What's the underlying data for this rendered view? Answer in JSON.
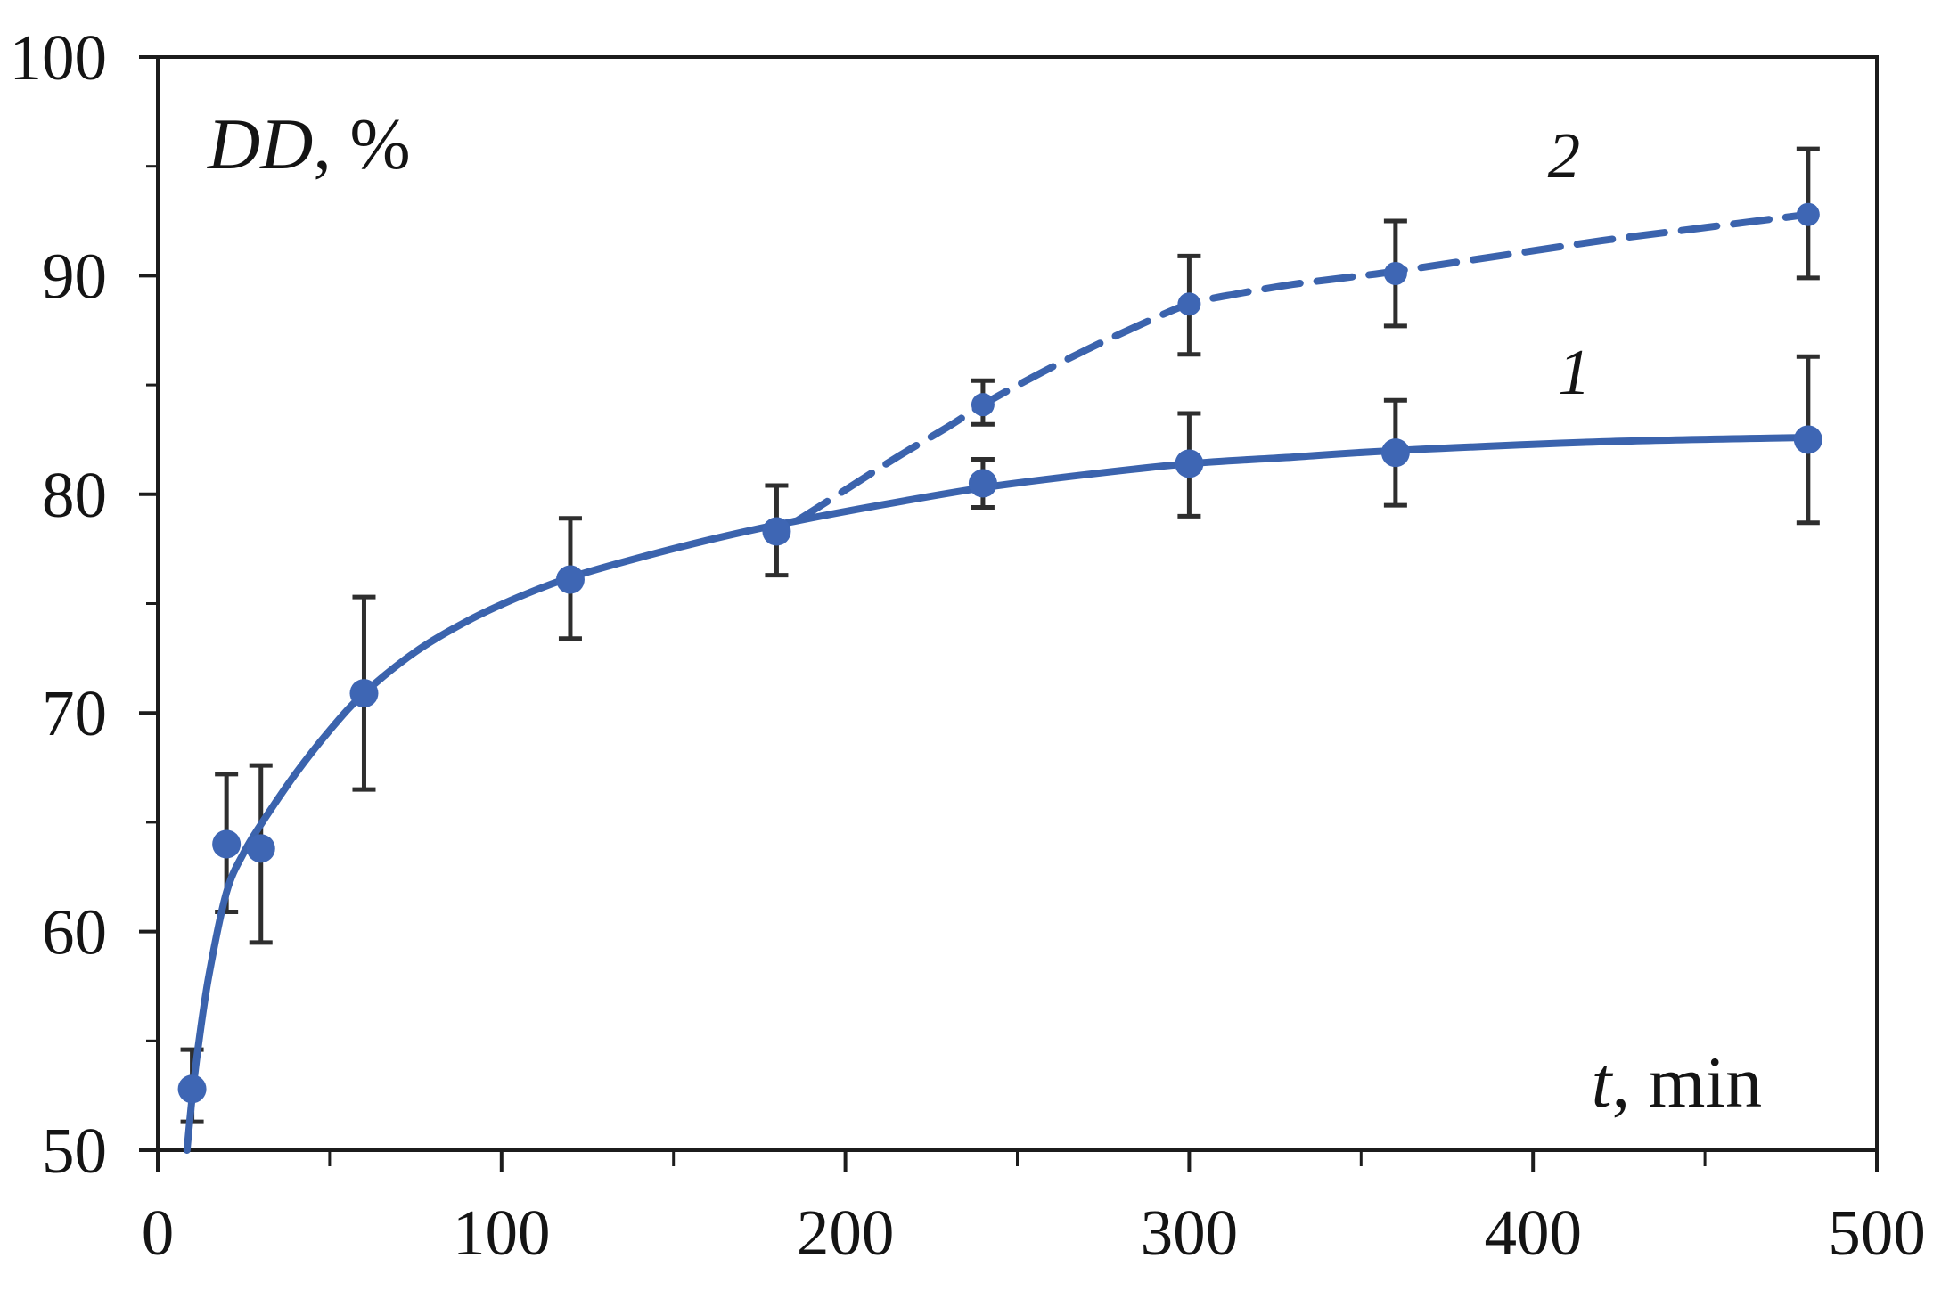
{
  "chart_data": {
    "type": "line",
    "title": "",
    "xlabel": "t, min",
    "ylabel": "DD, %",
    "xlabel_parts": {
      "var": "t",
      "rest": ", min"
    },
    "ylabel_parts": {
      "var": "DD",
      "rest": ", %"
    },
    "xlim": [
      0,
      500
    ],
    "ylim": [
      50,
      100
    ],
    "grid": false,
    "legend_position": "inline-curve-labels",
    "x_major_ticks": [
      0,
      100,
      200,
      300,
      400,
      500
    ],
    "x_major_tick_labels": [
      "0",
      "100",
      "200",
      "300",
      "400",
      "500"
    ],
    "x_minor_ticks": [
      50,
      150,
      250,
      350,
      450
    ],
    "y_major_ticks": [
      50,
      60,
      70,
      80,
      90,
      100
    ],
    "y_major_tick_labels": [
      "50",
      "60",
      "70",
      "80",
      "90",
      "100"
    ],
    "y_minor_ticks": [
      55,
      65,
      75,
      85,
      95
    ],
    "colors": {
      "curve": "#3b63ad",
      "marker": "#3e66b4",
      "error_bar": "#2e2e2e",
      "axis": "#1c1c1c",
      "text": "#141414",
      "background": "#ffffff"
    },
    "series": [
      {
        "name": "1",
        "line_style": "solid",
        "marker": "circle",
        "marker_radius": 16,
        "label": {
          "text": "1",
          "x": 412,
          "y": 84.6
        },
        "points": [
          {
            "t": 10,
            "dd": 52.8,
            "err_lo": 51.3,
            "err_hi": 54.6
          },
          {
            "t": 20,
            "dd": 64.0,
            "err_lo": 60.9,
            "err_hi": 67.2
          },
          {
            "t": 30,
            "dd": 63.8,
            "err_lo": 59.5,
            "err_hi": 67.6
          },
          {
            "t": 60,
            "dd": 70.9,
            "err_lo": 66.5,
            "err_hi": 75.3
          },
          {
            "t": 120,
            "dd": 76.1,
            "err_lo": 73.4,
            "err_hi": 78.9
          },
          {
            "t": 180,
            "dd": 78.3,
            "err_lo": 76.3,
            "err_hi": 80.4
          },
          {
            "t": 240,
            "dd": 80.5,
            "err_lo": 79.4,
            "err_hi": 81.6
          },
          {
            "t": 300,
            "dd": 81.4,
            "err_lo": 79.0,
            "err_hi": 83.7
          },
          {
            "t": 360,
            "dd": 81.9,
            "err_lo": 79.5,
            "err_hi": 84.3
          },
          {
            "t": 480,
            "dd": 82.5,
            "err_lo": 78.7,
            "err_hi": 86.3
          }
        ],
        "fit_curve": [
          [
            8.5,
            50.0
          ],
          [
            10,
            52.4
          ],
          [
            12,
            55.0
          ],
          [
            15,
            58.1
          ],
          [
            20,
            61.8
          ],
          [
            25,
            63.6
          ],
          [
            30,
            64.9
          ],
          [
            40,
            67.2
          ],
          [
            50,
            69.2
          ],
          [
            60,
            70.9
          ],
          [
            75,
            72.8
          ],
          [
            90,
            74.2
          ],
          [
            105,
            75.3
          ],
          [
            120,
            76.2
          ],
          [
            140,
            77.1
          ],
          [
            160,
            77.9
          ],
          [
            180,
            78.6
          ],
          [
            210,
            79.5
          ],
          [
            240,
            80.3
          ],
          [
            270,
            80.9
          ],
          [
            300,
            81.4
          ],
          [
            330,
            81.7
          ],
          [
            360,
            82.0
          ],
          [
            420,
            82.4
          ],
          [
            480,
            82.6
          ]
        ]
      },
      {
        "name": "2",
        "line_style": "dashed",
        "marker": "circle",
        "marker_radius": 13,
        "label": {
          "text": "2",
          "x": 409,
          "y": 94.5
        },
        "points": [
          {
            "t": 240,
            "dd": 84.1,
            "err_lo": 83.2,
            "err_hi": 85.2
          },
          {
            "t": 300,
            "dd": 88.7,
            "err_lo": 86.4,
            "err_hi": 90.9
          },
          {
            "t": 360,
            "dd": 90.1,
            "err_lo": 87.7,
            "err_hi": 92.5
          },
          {
            "t": 480,
            "dd": 92.8,
            "err_lo": 89.9,
            "err_hi": 95.8
          }
        ],
        "fit_curve": [
          [
            186,
            78.8
          ],
          [
            200,
            80.2
          ],
          [
            215,
            81.7
          ],
          [
            230,
            83.1
          ],
          [
            240,
            84.1
          ],
          [
            255,
            85.4
          ],
          [
            270,
            86.6
          ],
          [
            285,
            87.7
          ],
          [
            300,
            88.7
          ],
          [
            315,
            89.2
          ],
          [
            330,
            89.6
          ],
          [
            345,
            89.9
          ],
          [
            360,
            90.2
          ],
          [
            390,
            90.9
          ],
          [
            420,
            91.6
          ],
          [
            450,
            92.2
          ],
          [
            480,
            92.8
          ]
        ]
      }
    ],
    "axis_label_anchors": {
      "ylabel": {
        "x": 14.5,
        "y": 94.9,
        "anchor": "start",
        "font_size": 82
      },
      "xlabel": {
        "x": 417,
        "y": 52.0,
        "anchor": "start",
        "font_size": 82
      }
    },
    "tick_label_font_size": 73,
    "series_label_font_size": 73
  }
}
